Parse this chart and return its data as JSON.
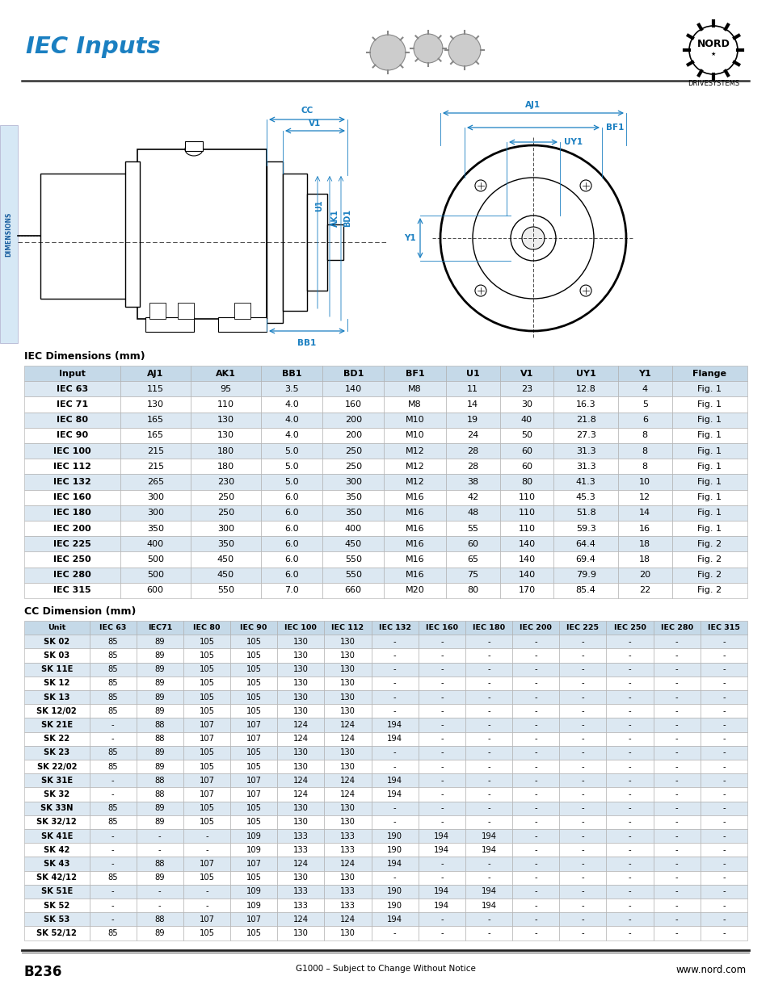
{
  "title": "IEC Inputs",
  "title_color": "#1a7fc1",
  "page_bg": "#ffffff",
  "section1_title": "IEC Dimensions (mm)",
  "section2_title": "CC Dimension (mm)",
  "footer_left": "B236",
  "footer_center": "G1000 – Subject to Change Without Notice",
  "footer_right": "www.nord.com",
  "iec_table_headers": [
    "Input",
    "AJ1",
    "AK1",
    "BB1",
    "BD1",
    "BF1",
    "U1",
    "V1",
    "UY1",
    "Y1",
    "Flange"
  ],
  "iec_table_data": [
    [
      "IEC 63",
      "115",
      "95",
      "3.5",
      "140",
      "M8",
      "11",
      "23",
      "12.8",
      "4",
      "Fig. 1"
    ],
    [
      "IEC 71",
      "130",
      "110",
      "4.0",
      "160",
      "M8",
      "14",
      "30",
      "16.3",
      "5",
      "Fig. 1"
    ],
    [
      "IEC 80",
      "165",
      "130",
      "4.0",
      "200",
      "M10",
      "19",
      "40",
      "21.8",
      "6",
      "Fig. 1"
    ],
    [
      "IEC 90",
      "165",
      "130",
      "4.0",
      "200",
      "M10",
      "24",
      "50",
      "27.3",
      "8",
      "Fig. 1"
    ],
    [
      "IEC 100",
      "215",
      "180",
      "5.0",
      "250",
      "M12",
      "28",
      "60",
      "31.3",
      "8",
      "Fig. 1"
    ],
    [
      "IEC 112",
      "215",
      "180",
      "5.0",
      "250",
      "M12",
      "28",
      "60",
      "31.3",
      "8",
      "Fig. 1"
    ],
    [
      "IEC 132",
      "265",
      "230",
      "5.0",
      "300",
      "M12",
      "38",
      "80",
      "41.3",
      "10",
      "Fig. 1"
    ],
    [
      "IEC 160",
      "300",
      "250",
      "6.0",
      "350",
      "M16",
      "42",
      "110",
      "45.3",
      "12",
      "Fig. 1"
    ],
    [
      "IEC 180",
      "300",
      "250",
      "6.0",
      "350",
      "M16",
      "48",
      "110",
      "51.8",
      "14",
      "Fig. 1"
    ],
    [
      "IEC 200",
      "350",
      "300",
      "6.0",
      "400",
      "M16",
      "55",
      "110",
      "59.3",
      "16",
      "Fig. 1"
    ],
    [
      "IEC 225",
      "400",
      "350",
      "6.0",
      "450",
      "M16",
      "60",
      "140",
      "64.4",
      "18",
      "Fig. 2"
    ],
    [
      "IEC 250",
      "500",
      "450",
      "6.0",
      "550",
      "M16",
      "65",
      "140",
      "69.4",
      "18",
      "Fig. 2"
    ],
    [
      "IEC 280",
      "500",
      "450",
      "6.0",
      "550",
      "M16",
      "75",
      "140",
      "79.9",
      "20",
      "Fig. 2"
    ],
    [
      "IEC 315",
      "600",
      "550",
      "7.0",
      "660",
      "M20",
      "80",
      "170",
      "85.4",
      "22",
      "Fig. 2"
    ]
  ],
  "cc_table_headers": [
    "Unit",
    "IEC 63",
    "IEC71",
    "IEC 80",
    "IEC 90",
    "IEC 100",
    "IEC 112",
    "IEC 132",
    "IEC 160",
    "IEC 180",
    "IEC 200",
    "IEC 225",
    "IEC 250",
    "IEC 280",
    "IEC 315"
  ],
  "cc_table_data": [
    [
      "SK 02",
      "85",
      "89",
      "105",
      "105",
      "130",
      "130",
      "-",
      "-",
      "-",
      "-",
      "-",
      "-",
      "-",
      "-"
    ],
    [
      "SK 03",
      "85",
      "89",
      "105",
      "105",
      "130",
      "130",
      "-",
      "-",
      "-",
      "-",
      "-",
      "-",
      "-",
      "-"
    ],
    [
      "SK 11E",
      "85",
      "89",
      "105",
      "105",
      "130",
      "130",
      "-",
      "-",
      "-",
      "-",
      "-",
      "-",
      "-",
      "-"
    ],
    [
      "SK 12",
      "85",
      "89",
      "105",
      "105",
      "130",
      "130",
      "-",
      "-",
      "-",
      "-",
      "-",
      "-",
      "-",
      "-"
    ],
    [
      "SK 13",
      "85",
      "89",
      "105",
      "105",
      "130",
      "130",
      "-",
      "-",
      "-",
      "-",
      "-",
      "-",
      "-",
      "-"
    ],
    [
      "SK 12/02",
      "85",
      "89",
      "105",
      "105",
      "130",
      "130",
      "-",
      "-",
      "-",
      "-",
      "-",
      "-",
      "-",
      "-"
    ],
    [
      "SK 21E",
      "-",
      "88",
      "107",
      "107",
      "124",
      "124",
      "194",
      "-",
      "-",
      "-",
      "-",
      "-",
      "-",
      "-"
    ],
    [
      "SK 22",
      "-",
      "88",
      "107",
      "107",
      "124",
      "124",
      "194",
      "-",
      "-",
      "-",
      "-",
      "-",
      "-",
      "-"
    ],
    [
      "SK 23",
      "85",
      "89",
      "105",
      "105",
      "130",
      "130",
      "-",
      "-",
      "-",
      "-",
      "-",
      "-",
      "-",
      "-"
    ],
    [
      "SK 22/02",
      "85",
      "89",
      "105",
      "105",
      "130",
      "130",
      "-",
      "-",
      "-",
      "-",
      "-",
      "-",
      "-",
      "-"
    ],
    [
      "SK 31E",
      "-",
      "88",
      "107",
      "107",
      "124",
      "124",
      "194",
      "-",
      "-",
      "-",
      "-",
      "-",
      "-",
      "-"
    ],
    [
      "SK 32",
      "-",
      "88",
      "107",
      "107",
      "124",
      "124",
      "194",
      "-",
      "-",
      "-",
      "-",
      "-",
      "-",
      "-"
    ],
    [
      "SK 33N",
      "85",
      "89",
      "105",
      "105",
      "130",
      "130",
      "-",
      "-",
      "-",
      "-",
      "-",
      "-",
      "-",
      "-"
    ],
    [
      "SK 32/12",
      "85",
      "89",
      "105",
      "105",
      "130",
      "130",
      "-",
      "-",
      "-",
      "-",
      "-",
      "-",
      "-",
      "-"
    ],
    [
      "SK 41E",
      "-",
      "-",
      "-",
      "109",
      "133",
      "133",
      "190",
      "194",
      "194",
      "-",
      "-",
      "-",
      "-",
      "-"
    ],
    [
      "SK 42",
      "-",
      "-",
      "-",
      "109",
      "133",
      "133",
      "190",
      "194",
      "194",
      "-",
      "-",
      "-",
      "-",
      "-"
    ],
    [
      "SK 43",
      "-",
      "88",
      "107",
      "107",
      "124",
      "124",
      "194",
      "-",
      "-",
      "-",
      "-",
      "-",
      "-",
      "-"
    ],
    [
      "SK 42/12",
      "85",
      "89",
      "105",
      "105",
      "130",
      "130",
      "-",
      "-",
      "-",
      "-",
      "-",
      "-",
      "-",
      "-"
    ],
    [
      "SK 51E",
      "-",
      "-",
      "-",
      "109",
      "133",
      "133",
      "190",
      "194",
      "194",
      "-",
      "-",
      "-",
      "-",
      "-"
    ],
    [
      "SK 52",
      "-",
      "-",
      "-",
      "109",
      "133",
      "133",
      "190",
      "194",
      "194",
      "-",
      "-",
      "-",
      "-",
      "-"
    ],
    [
      "SK 53",
      "-",
      "88",
      "107",
      "107",
      "124",
      "124",
      "194",
      "-",
      "-",
      "-",
      "-",
      "-",
      "-",
      "-"
    ],
    [
      "SK 52/12",
      "85",
      "89",
      "105",
      "105",
      "130",
      "130",
      "-",
      "-",
      "-",
      "-",
      "-",
      "-",
      "-",
      "-"
    ]
  ],
  "header_bg": "#c5d9e8",
  "row_alt_bg": "#dce8f2",
  "row_normal_bg": "#ffffff",
  "border_color": "#aaaaaa",
  "sidebar_color": "#5b9bd5",
  "dim_label_color": "#1a7fc1"
}
